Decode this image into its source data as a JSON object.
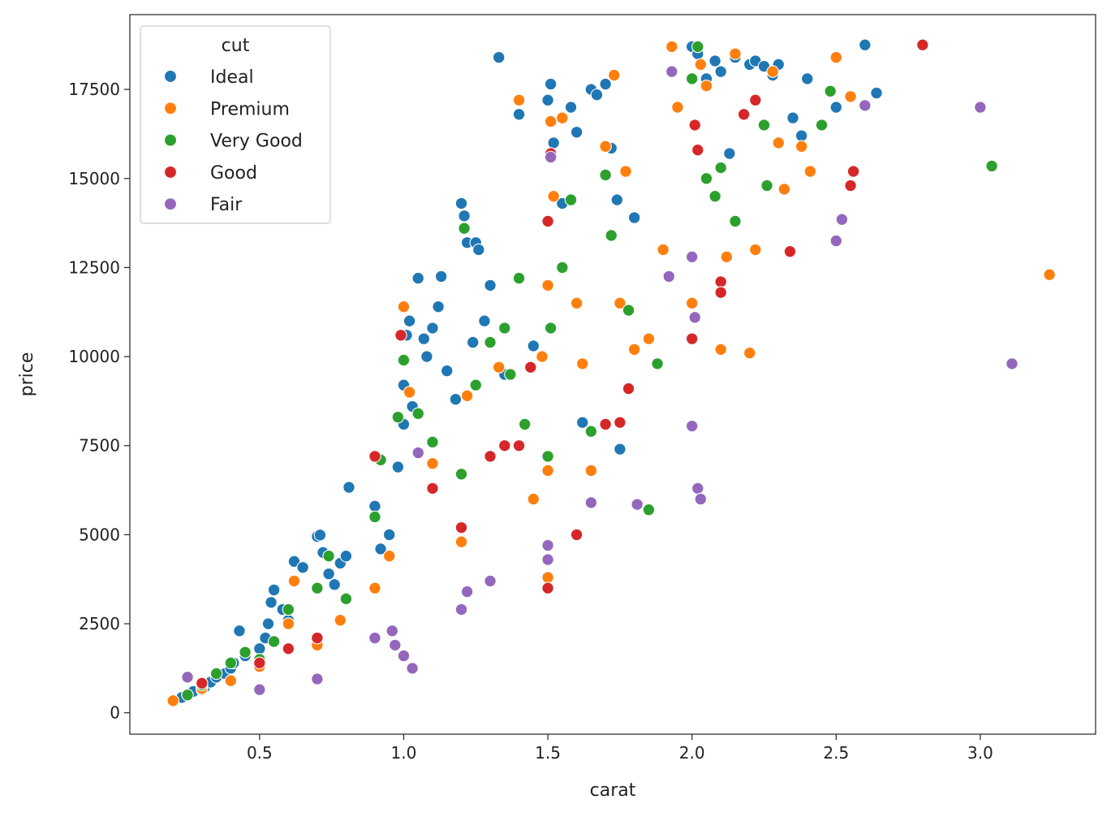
{
  "chart_data": {
    "type": "scatter",
    "title": "",
    "xlabel": "carat",
    "ylabel": "price",
    "xlim": [
      0.05,
      3.4
    ],
    "ylim": [
      -600,
      19600
    ],
    "xticks": [
      0.5,
      1.0,
      1.5,
      2.0,
      2.5,
      3.0
    ],
    "xtick_labels": [
      "0.5",
      "1.0",
      "1.5",
      "2.0",
      "2.5",
      "3.0"
    ],
    "yticks": [
      0,
      2500,
      5000,
      7500,
      10000,
      12500,
      15000,
      17500
    ],
    "ytick_labels": [
      "0",
      "2500",
      "5000",
      "7500",
      "10000",
      "12500",
      "15000",
      "17500"
    ],
    "grid": false,
    "legend": {
      "title": "cut",
      "placement": "top-left"
    },
    "series": [
      {
        "name": "Ideal",
        "color": "#1f77b4",
        "points": [
          [
            0.23,
            430
          ],
          [
            0.25,
            520
          ],
          [
            0.27,
            600
          ],
          [
            0.3,
            650
          ],
          [
            0.31,
            720
          ],
          [
            0.33,
            860
          ],
          [
            0.35,
            1000
          ],
          [
            0.38,
            1100
          ],
          [
            0.4,
            1250
          ],
          [
            0.41,
            1400
          ],
          [
            0.43,
            2300
          ],
          [
            0.45,
            1600
          ],
          [
            0.5,
            1800
          ],
          [
            0.52,
            2100
          ],
          [
            0.53,
            2500
          ],
          [
            0.54,
            3100
          ],
          [
            0.55,
            3450
          ],
          [
            0.58,
            2900
          ],
          [
            0.6,
            2600
          ],
          [
            0.62,
            4250
          ],
          [
            0.65,
            4080
          ],
          [
            0.7,
            4950
          ],
          [
            0.71,
            4990
          ],
          [
            0.72,
            4500
          ],
          [
            0.74,
            3900
          ],
          [
            0.76,
            3600
          ],
          [
            0.78,
            4200
          ],
          [
            0.8,
            4400
          ],
          [
            0.81,
            6330
          ],
          [
            0.9,
            5800
          ],
          [
            0.92,
            4600
          ],
          [
            0.95,
            5000
          ],
          [
            0.98,
            6900
          ],
          [
            1.0,
            8100
          ],
          [
            1.0,
            9200
          ],
          [
            1.01,
            10600
          ],
          [
            1.02,
            11000
          ],
          [
            1.03,
            8600
          ],
          [
            1.05,
            12200
          ],
          [
            1.07,
            10500
          ],
          [
            1.08,
            10000
          ],
          [
            1.1,
            10800
          ],
          [
            1.12,
            11400
          ],
          [
            1.13,
            12250
          ],
          [
            1.15,
            9600
          ],
          [
            1.18,
            8800
          ],
          [
            1.2,
            14300
          ],
          [
            1.21,
            13950
          ],
          [
            1.22,
            13200
          ],
          [
            1.24,
            10400
          ],
          [
            1.25,
            13200
          ],
          [
            1.26,
            13000
          ],
          [
            1.28,
            11000
          ],
          [
            1.3,
            12000
          ],
          [
            1.33,
            18400
          ],
          [
            1.35,
            9500
          ],
          [
            1.4,
            16800
          ],
          [
            1.45,
            10300
          ],
          [
            1.5,
            17200
          ],
          [
            1.51,
            17650
          ],
          [
            1.52,
            16000
          ],
          [
            1.55,
            14300
          ],
          [
            1.58,
            17000
          ],
          [
            1.6,
            16300
          ],
          [
            1.62,
            8150
          ],
          [
            1.65,
            17500
          ],
          [
            1.67,
            17350
          ],
          [
            1.7,
            17650
          ],
          [
            1.72,
            15850
          ],
          [
            1.74,
            14400
          ],
          [
            1.75,
            7400
          ],
          [
            1.8,
            13900
          ],
          [
            2.0,
            18700
          ],
          [
            2.02,
            18500
          ],
          [
            2.05,
            17800
          ],
          [
            2.08,
            18300
          ],
          [
            2.1,
            18000
          ],
          [
            2.13,
            15700
          ],
          [
            2.15,
            18400
          ],
          [
            2.2,
            18200
          ],
          [
            2.22,
            18300
          ],
          [
            2.25,
            18150
          ],
          [
            2.28,
            17900
          ],
          [
            2.3,
            18200
          ],
          [
            2.35,
            16700
          ],
          [
            2.38,
            16200
          ],
          [
            2.4,
            17800
          ],
          [
            2.5,
            17000
          ],
          [
            2.6,
            18750
          ],
          [
            2.64,
            17400
          ]
        ]
      },
      {
        "name": "Premium",
        "color": "#ff7f0e",
        "points": [
          [
            0.2,
            340
          ],
          [
            0.3,
            680
          ],
          [
            0.4,
            900
          ],
          [
            0.5,
            1300
          ],
          [
            0.6,
            2500
          ],
          [
            0.62,
            3700
          ],
          [
            0.7,
            1900
          ],
          [
            0.78,
            2600
          ],
          [
            0.9,
            3500
          ],
          [
            0.95,
            4400
          ],
          [
            1.0,
            11400
          ],
          [
            1.02,
            9000
          ],
          [
            1.1,
            7000
          ],
          [
            1.2,
            4800
          ],
          [
            1.22,
            8900
          ],
          [
            1.3,
            3700
          ],
          [
            1.33,
            9700
          ],
          [
            1.4,
            17200
          ],
          [
            1.45,
            6000
          ],
          [
            1.48,
            10000
          ],
          [
            1.5,
            3800
          ],
          [
            1.5,
            6800
          ],
          [
            1.5,
            12000
          ],
          [
            1.51,
            16600
          ],
          [
            1.52,
            14500
          ],
          [
            1.55,
            16700
          ],
          [
            1.6,
            11500
          ],
          [
            1.62,
            9800
          ],
          [
            1.65,
            6800
          ],
          [
            1.7,
            15900
          ],
          [
            1.73,
            17900
          ],
          [
            1.75,
            11500
          ],
          [
            1.77,
            15200
          ],
          [
            1.8,
            10200
          ],
          [
            1.85,
            10500
          ],
          [
            1.9,
            13000
          ],
          [
            1.93,
            18700
          ],
          [
            1.95,
            17000
          ],
          [
            2.0,
            11500
          ],
          [
            2.03,
            18200
          ],
          [
            2.05,
            17600
          ],
          [
            2.1,
            10200
          ],
          [
            2.12,
            12800
          ],
          [
            2.15,
            18500
          ],
          [
            2.2,
            10100
          ],
          [
            2.22,
            13000
          ],
          [
            2.28,
            18000
          ],
          [
            2.3,
            16000
          ],
          [
            2.32,
            14700
          ],
          [
            2.38,
            15900
          ],
          [
            2.41,
            15200
          ],
          [
            2.5,
            18400
          ],
          [
            2.55,
            17300
          ],
          [
            3.24,
            12300
          ]
        ]
      },
      {
        "name": "Very Good",
        "color": "#2ca02c",
        "points": [
          [
            0.25,
            500
          ],
          [
            0.3,
            780
          ],
          [
            0.35,
            1100
          ],
          [
            0.4,
            1400
          ],
          [
            0.45,
            1700
          ],
          [
            0.5,
            1500
          ],
          [
            0.55,
            2000
          ],
          [
            0.6,
            2900
          ],
          [
            0.7,
            3500
          ],
          [
            0.74,
            4400
          ],
          [
            0.8,
            3200
          ],
          [
            0.9,
            5500
          ],
          [
            0.92,
            7100
          ],
          [
            0.98,
            8300
          ],
          [
            1.0,
            9900
          ],
          [
            1.05,
            8400
          ],
          [
            1.1,
            7600
          ],
          [
            1.2,
            6700
          ],
          [
            1.21,
            13600
          ],
          [
            1.25,
            9200
          ],
          [
            1.3,
            10400
          ],
          [
            1.35,
            10800
          ],
          [
            1.37,
            9500
          ],
          [
            1.4,
            12200
          ],
          [
            1.42,
            8100
          ],
          [
            1.5,
            7200
          ],
          [
            1.51,
            10800
          ],
          [
            1.55,
            12500
          ],
          [
            1.58,
            14400
          ],
          [
            1.65,
            7900
          ],
          [
            1.7,
            15100
          ],
          [
            1.72,
            13400
          ],
          [
            1.78,
            11300
          ],
          [
            1.85,
            5700
          ],
          [
            1.88,
            9800
          ],
          [
            2.0,
            17800
          ],
          [
            2.02,
            18700
          ],
          [
            2.05,
            15000
          ],
          [
            2.08,
            14500
          ],
          [
            2.1,
            15300
          ],
          [
            2.15,
            13800
          ],
          [
            2.25,
            16500
          ],
          [
            2.26,
            14800
          ],
          [
            2.45,
            16500
          ],
          [
            2.48,
            17450
          ],
          [
            3.04,
            15350
          ]
        ]
      },
      {
        "name": "Good",
        "color": "#d62728",
        "points": [
          [
            0.3,
            830
          ],
          [
            0.5,
            1400
          ],
          [
            0.6,
            1800
          ],
          [
            0.7,
            2100
          ],
          [
            0.9,
            7200
          ],
          [
            0.99,
            10600
          ],
          [
            1.1,
            6300
          ],
          [
            1.2,
            5200
          ],
          [
            1.3,
            7200
          ],
          [
            1.35,
            7500
          ],
          [
            1.4,
            7500
          ],
          [
            1.44,
            9700
          ],
          [
            1.5,
            3500
          ],
          [
            1.5,
            13800
          ],
          [
            1.51,
            15700
          ],
          [
            1.6,
            5000
          ],
          [
            1.7,
            8100
          ],
          [
            1.75,
            8150
          ],
          [
            1.78,
            9100
          ],
          [
            2.0,
            10500
          ],
          [
            2.01,
            16500
          ],
          [
            2.02,
            15800
          ],
          [
            2.1,
            12100
          ],
          [
            2.1,
            11800
          ],
          [
            2.18,
            16800
          ],
          [
            2.22,
            17200
          ],
          [
            2.34,
            12950
          ],
          [
            2.55,
            14800
          ],
          [
            2.56,
            15200
          ],
          [
            2.8,
            18750
          ]
        ]
      },
      {
        "name": "Fair",
        "color": "#9467bd",
        "points": [
          [
            0.25,
            1000
          ],
          [
            0.5,
            650
          ],
          [
            0.7,
            950
          ],
          [
            0.9,
            2100
          ],
          [
            0.96,
            2300
          ],
          [
            0.97,
            1900
          ],
          [
            1.0,
            1600
          ],
          [
            1.03,
            1250
          ],
          [
            1.05,
            7300
          ],
          [
            1.2,
            2900
          ],
          [
            1.22,
            3400
          ],
          [
            1.3,
            3700
          ],
          [
            1.5,
            4300
          ],
          [
            1.5,
            4700
          ],
          [
            1.51,
            15600
          ],
          [
            1.65,
            5900
          ],
          [
            1.81,
            5850
          ],
          [
            1.92,
            12250
          ],
          [
            1.93,
            18000
          ],
          [
            2.0,
            8050
          ],
          [
            2.0,
            12800
          ],
          [
            2.01,
            11100
          ],
          [
            2.02,
            6300
          ],
          [
            2.03,
            6000
          ],
          [
            2.5,
            13250
          ],
          [
            2.52,
            13850
          ],
          [
            2.6,
            17050
          ],
          [
            3.0,
            17000
          ],
          [
            3.11,
            9800
          ]
        ]
      }
    ]
  }
}
